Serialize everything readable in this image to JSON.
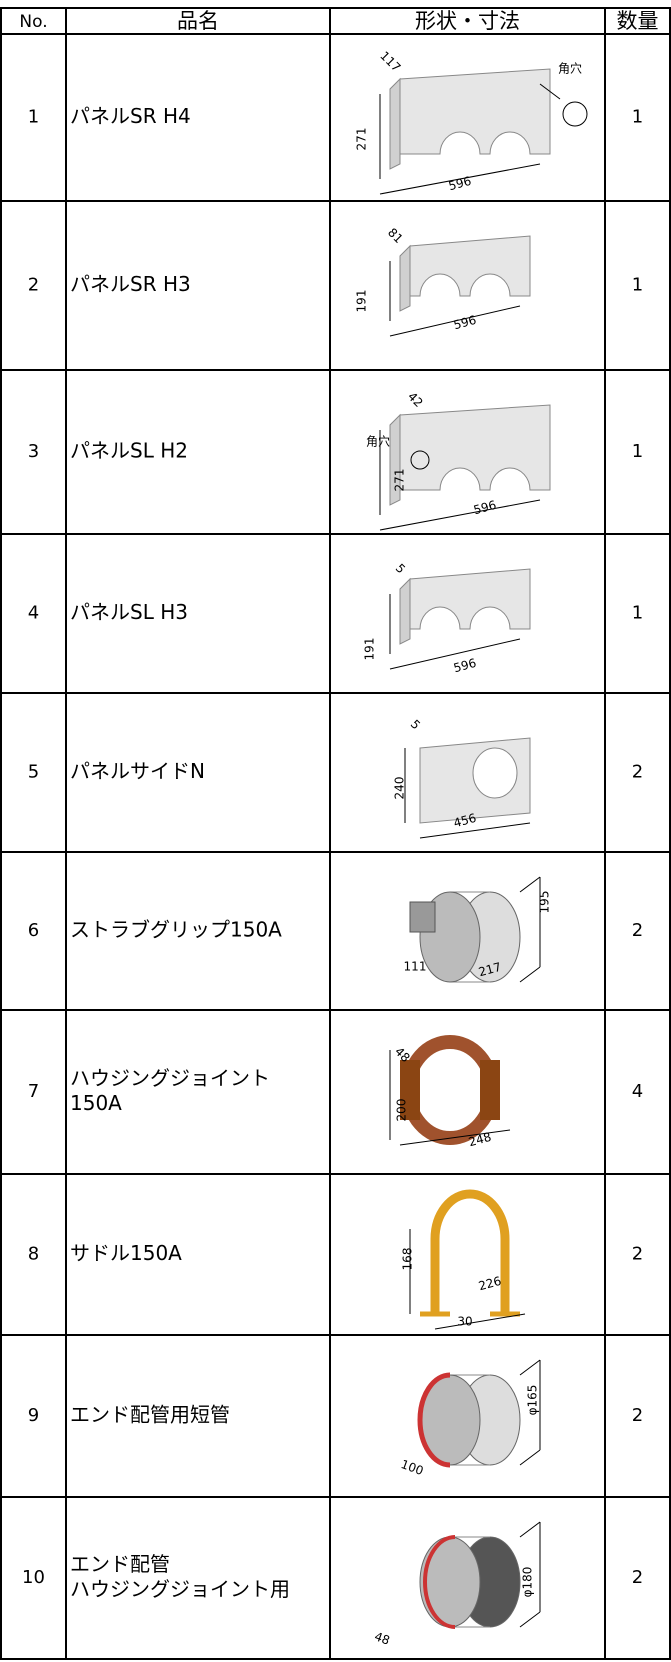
{
  "table": {
    "headers": [
      "No.",
      "品名",
      "形状・寸法",
      "数量"
    ],
    "rows": [
      {
        "no": "1",
        "name": [
          "パネルSR H4"
        ],
        "dims": [
          "117",
          "271",
          "596",
          "角穴"
        ],
        "qty": "1"
      },
      {
        "no": "2",
        "name": [
          "パネルSR H3"
        ],
        "dims": [
          "81",
          "191",
          "596"
        ],
        "qty": "1"
      },
      {
        "no": "3",
        "name": [
          "パネルSL H2"
        ],
        "dims": [
          "42",
          "角穴",
          "271",
          "596"
        ],
        "qty": "1"
      },
      {
        "no": "4",
        "name": [
          "パネルSL H3"
        ],
        "dims": [
          "5",
          "191",
          "596"
        ],
        "qty": "1"
      },
      {
        "no": "5",
        "name": [
          "パネルサイドN"
        ],
        "dims": [
          "5",
          "240",
          "456"
        ],
        "qty": "2"
      },
      {
        "no": "6",
        "name": [
          "ストラブグリップ150A"
        ],
        "dims": [
          "195",
          "111",
          "217"
        ],
        "qty": "2"
      },
      {
        "no": "7",
        "name": [
          "ハウジングジョイント",
          "150A"
        ],
        "dims": [
          "48",
          "200",
          "248"
        ],
        "qty": "4"
      },
      {
        "no": "8",
        "name": [
          "サドル150A"
        ],
        "dims": [
          "168",
          "226",
          "30"
        ],
        "qty": "2"
      },
      {
        "no": "9",
        "name": [
          "エンド配管用短管"
        ],
        "dims": [
          "φ165",
          "100"
        ],
        "qty": "2"
      },
      {
        "no": "10",
        "name": [
          "エンド配管",
          "ハウジングジョイント用"
        ],
        "dims": [
          "φ180",
          "48"
        ],
        "qty": "2"
      }
    ]
  }
}
